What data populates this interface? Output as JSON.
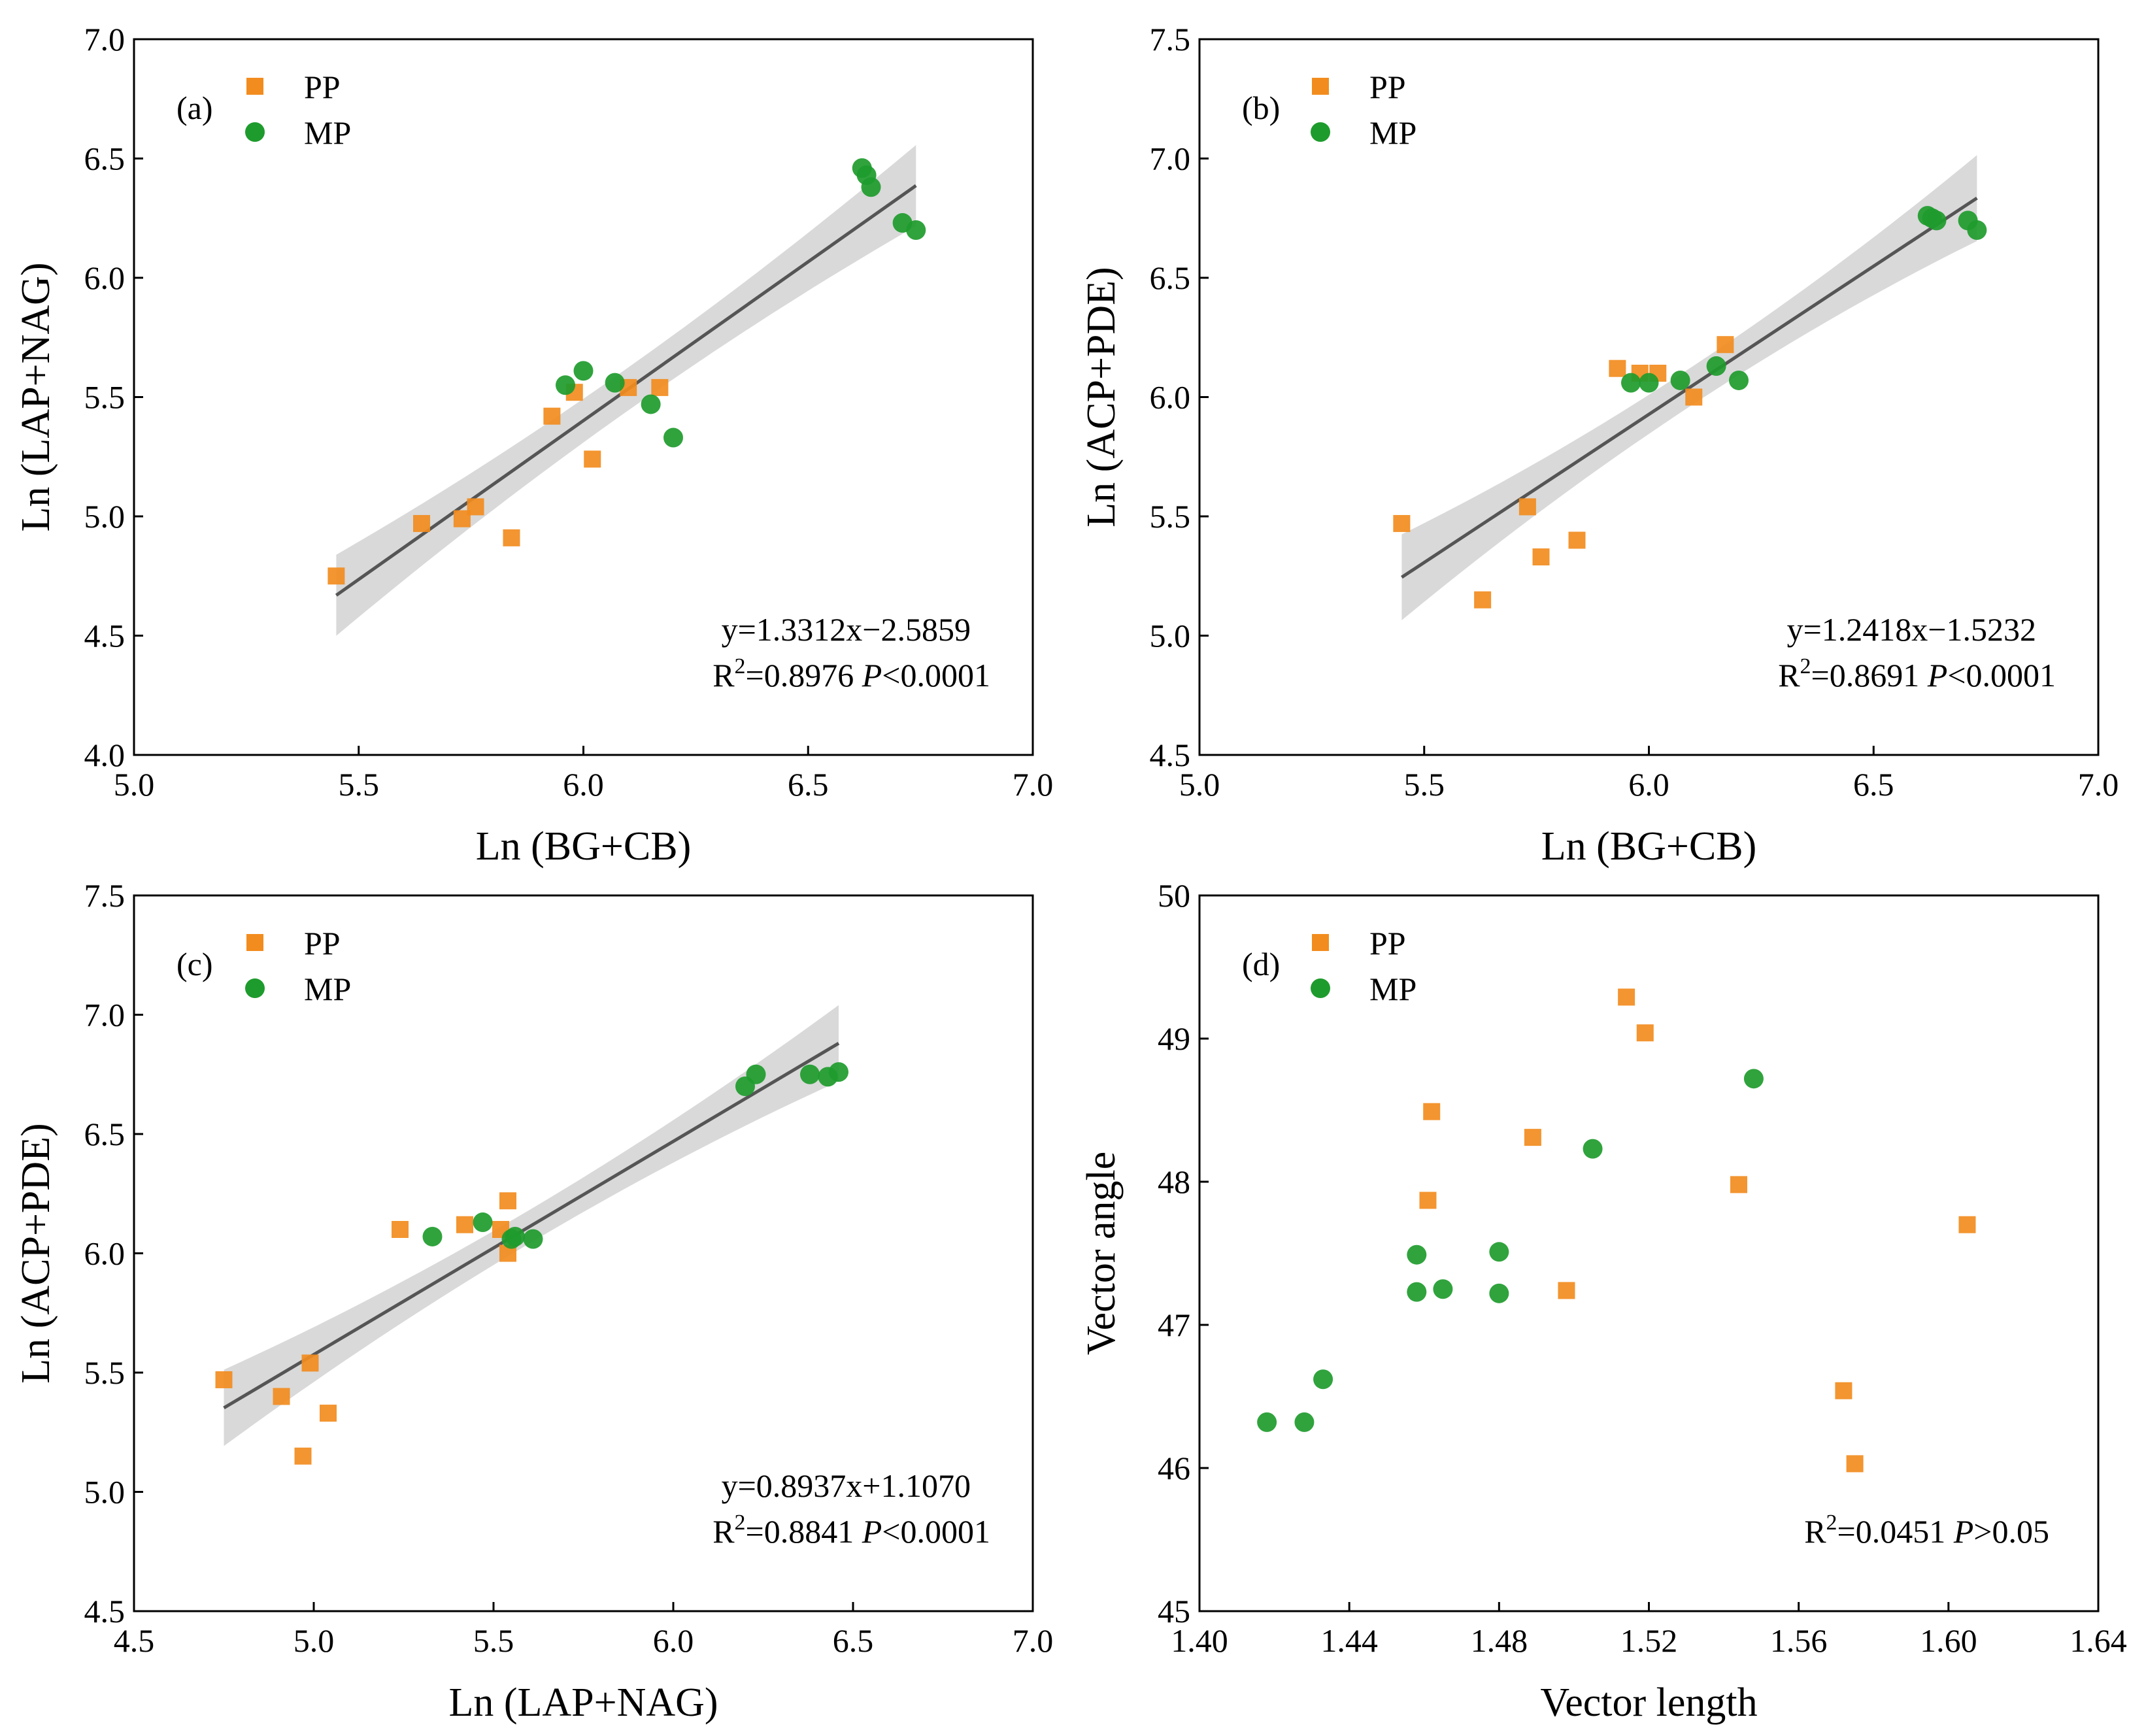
{
  "chart_data": [
    {
      "panel": "(a)",
      "type": "scatter",
      "xlabel": "Ln (BG+CB)",
      "ylabel": "Ln (LAP+NAG)",
      "xlim": [
        5.0,
        7.0
      ],
      "ylim": [
        4.0,
        7.0
      ],
      "xticks": [
        "5.0",
        "5.5",
        "6.0",
        "6.5",
        "7.0"
      ],
      "yticks": [
        "4.0",
        "4.5",
        "5.0",
        "5.5",
        "6.0",
        "6.5",
        "7.0"
      ],
      "legend": [
        "PP",
        "MP"
      ],
      "series": [
        {
          "name": "PP",
          "marker": "square",
          "color": "#f28c1e",
          "points": [
            [
              5.45,
              4.75
            ],
            [
              5.64,
              4.97
            ],
            [
              5.73,
              4.99
            ],
            [
              5.76,
              5.04
            ],
            [
              5.84,
              4.91
            ],
            [
              5.93,
              5.42
            ],
            [
              5.98,
              5.52
            ],
            [
              6.02,
              5.24
            ],
            [
              6.1,
              5.54
            ],
            [
              6.17,
              5.54
            ]
          ]
        },
        {
          "name": "MP",
          "marker": "circle",
          "color": "#1e9b2d",
          "points": [
            [
              5.96,
              5.55
            ],
            [
              6.0,
              5.61
            ],
            [
              6.07,
              5.56
            ],
            [
              6.15,
              5.47
            ],
            [
              6.2,
              5.33
            ],
            [
              6.62,
              6.46
            ],
            [
              6.63,
              6.43
            ],
            [
              6.64,
              6.38
            ],
            [
              6.71,
              6.23
            ],
            [
              6.74,
              6.2
            ]
          ]
        }
      ],
      "fit": {
        "slope": 1.3312,
        "intercept": -2.5859,
        "x_range": [
          5.45,
          6.74
        ],
        "ci_halfwidth": [
          0.17,
          0.09,
          0.17
        ]
      },
      "equation": "y=1.3312x−2.5859",
      "r2_prefix": "R",
      "r2_value": "=0.8976",
      "p_letter": "P",
      "p_value": "<0.0001"
    },
    {
      "panel": "(b)",
      "type": "scatter",
      "xlabel": "Ln (BG+CB)",
      "ylabel": "Ln (ACP+PDE)",
      "xlim": [
        5.0,
        7.0
      ],
      "ylim": [
        4.5,
        7.5
      ],
      "xticks": [
        "5.0",
        "5.5",
        "6.0",
        "6.5",
        "7.0"
      ],
      "yticks": [
        "4.5",
        "5.0",
        "5.5",
        "6.0",
        "6.5",
        "7.0",
        "7.5"
      ],
      "legend": [
        "PP",
        "MP"
      ],
      "series": [
        {
          "name": "PP",
          "marker": "square",
          "color": "#f28c1e",
          "points": [
            [
              5.45,
              5.47
            ],
            [
              5.63,
              5.15
            ],
            [
              5.73,
              5.54
            ],
            [
              5.76,
              5.33
            ],
            [
              5.84,
              5.4
            ],
            [
              5.93,
              6.12
            ],
            [
              5.98,
              6.1
            ],
            [
              6.02,
              6.1
            ],
            [
              6.1,
              6.0
            ],
            [
              6.17,
              6.22
            ]
          ]
        },
        {
          "name": "MP",
          "marker": "circle",
          "color": "#1e9b2d",
          "points": [
            [
              5.96,
              6.06
            ],
            [
              6.0,
              6.06
            ],
            [
              6.07,
              6.07
            ],
            [
              6.15,
              6.13
            ],
            [
              6.2,
              6.07
            ],
            [
              6.62,
              6.76
            ],
            [
              6.63,
              6.75
            ],
            [
              6.64,
              6.74
            ],
            [
              6.71,
              6.74
            ],
            [
              6.73,
              6.7
            ]
          ]
        }
      ],
      "fit": {
        "slope": 1.2418,
        "intercept": -1.5232,
        "x_range": [
          5.45,
          6.73
        ],
        "ci_halfwidth": [
          0.18,
          0.08,
          0.17
        ]
      },
      "equation": "y=1.2418x−1.5232",
      "r2_prefix": "R",
      "r2_value": "=0.8691",
      "p_letter": "P",
      "p_value": "<0.0001"
    },
    {
      "panel": "(c)",
      "type": "scatter",
      "xlabel": "Ln (LAP+NAG)",
      "ylabel": "Ln (ACP+PDE)",
      "xlim": [
        4.5,
        7.0
      ],
      "ylim": [
        4.5,
        7.5
      ],
      "xticks": [
        "4.5",
        "5.0",
        "5.5",
        "6.0",
        "6.5",
        "7.0"
      ],
      "yticks": [
        "4.5",
        "5.0",
        "5.5",
        "6.0",
        "6.5",
        "7.0",
        "7.5"
      ],
      "legend": [
        "PP",
        "MP"
      ],
      "series": [
        {
          "name": "PP",
          "marker": "square",
          "color": "#f28c1e",
          "points": [
            [
              4.75,
              5.47
            ],
            [
              4.91,
              5.4
            ],
            [
              4.97,
              5.15
            ],
            [
              4.99,
              5.54
            ],
            [
              5.04,
              5.33
            ],
            [
              5.24,
              6.1
            ],
            [
              5.42,
              6.12
            ],
            [
              5.52,
              6.1
            ],
            [
              5.54,
              6.22
            ],
            [
              5.54,
              6.0
            ]
          ]
        },
        {
          "name": "MP",
          "marker": "circle",
          "color": "#1e9b2d",
          "points": [
            [
              5.33,
              6.07
            ],
            [
              5.47,
              6.13
            ],
            [
              5.55,
              6.06
            ],
            [
              5.56,
              6.07
            ],
            [
              5.61,
              6.06
            ],
            [
              6.2,
              6.7
            ],
            [
              6.23,
              6.75
            ],
            [
              6.38,
              6.75
            ],
            [
              6.43,
              6.74
            ],
            [
              6.46,
              6.76
            ]
          ]
        }
      ],
      "fit": {
        "slope": 0.8937,
        "intercept": 1.107,
        "x_range": [
          4.75,
          6.46
        ],
        "ci_halfwidth": [
          0.15,
          0.07,
          0.16
        ]
      },
      "equation": "y=0.8937x+1.1070",
      "r2_prefix": "R",
      "r2_value": "=0.8841",
      "p_letter": "P",
      "p_value": "<0.0001"
    },
    {
      "panel": "(d)",
      "type": "scatter",
      "xlabel": "Vector length",
      "ylabel": "Vector angle",
      "xlim": [
        1.4,
        1.64
      ],
      "ylim": [
        45,
        50
      ],
      "xticks": [
        "1.40",
        "1.44",
        "1.48",
        "1.52",
        "1.56",
        "1.60",
        "1.64"
      ],
      "yticks": [
        "45",
        "46",
        "47",
        "48",
        "49",
        "50"
      ],
      "legend": [
        "PP",
        "MP"
      ],
      "series": [
        {
          "name": "PP",
          "marker": "square",
          "color": "#f28c1e",
          "points": [
            [
              1.461,
              47.87
            ],
            [
              1.462,
              48.49
            ],
            [
              1.489,
              48.31
            ],
            [
              1.498,
              47.24
            ],
            [
              1.514,
              49.29
            ],
            [
              1.519,
              49.04
            ],
            [
              1.544,
              47.98
            ],
            [
              1.572,
              46.54
            ],
            [
              1.575,
              46.03
            ],
            [
              1.605,
              47.7
            ]
          ]
        },
        {
          "name": "MP",
          "marker": "circle",
          "color": "#1e9b2d",
          "points": [
            [
              1.418,
              46.32
            ],
            [
              1.428,
              46.32
            ],
            [
              1.433,
              46.62
            ],
            [
              1.458,
              47.49
            ],
            [
              1.458,
              47.23
            ],
            [
              1.465,
              47.25
            ],
            [
              1.48,
              47.51
            ],
            [
              1.48,
              47.22
            ],
            [
              1.505,
              48.23
            ],
            [
              1.548,
              48.72
            ]
          ]
        }
      ],
      "fit": null,
      "equation": "",
      "r2_prefix": "R",
      "r2_value": "=0.0451",
      "p_letter": "P",
      "p_value": ">0.05"
    }
  ]
}
